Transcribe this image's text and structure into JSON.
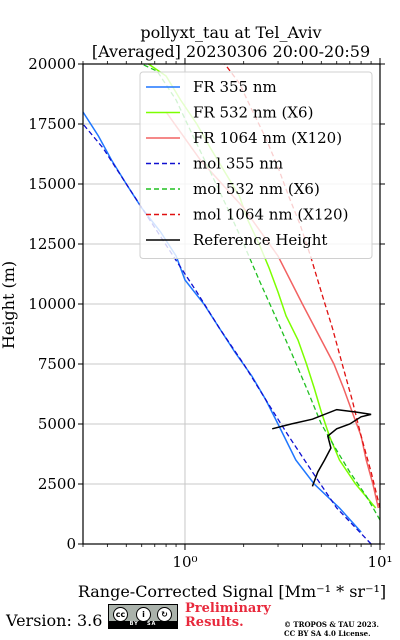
{
  "chart_data": {
    "type": "line",
    "title": "pollyxt_tau at Tel_Aviv",
    "subtitle": "[Averaged] 20230306 20:00-20:59",
    "xlabel": "Range-Corrected Signal [Mm⁻¹ * sr⁻¹]",
    "ylabel": "Height (m)",
    "xscale": "log",
    "xlim": [
      0.3,
      10
    ],
    "ylim": [
      0,
      20000
    ],
    "xticks": [
      1,
      10
    ],
    "xtick_labels": [
      "10⁰",
      "10¹"
    ],
    "yticks": [
      0,
      2500,
      5000,
      7500,
      10000,
      12500,
      15000,
      17500,
      20000
    ],
    "ytick_labels": [
      "0",
      "2500",
      "5000",
      "7500",
      "10000",
      "12500",
      "15000",
      "17500",
      "20000"
    ],
    "grid": true,
    "legend_position": "top-right",
    "series": [
      {
        "name": "FR 355 nm",
        "color": "#1f77ff",
        "style": "solid",
        "x": [
          8.0,
          6.2,
          4.6,
          3.7,
          3.0,
          2.6,
          2.2,
          1.8,
          1.5,
          1.25,
          1.0,
          0.9,
          0.75,
          0.6,
          0.5,
          0.42,
          0.36,
          0.3
        ],
        "y": [
          500,
          1500,
          2500,
          3500,
          5000,
          6000,
          7000,
          8000,
          9000,
          10000,
          11000,
          12000,
          13000,
          14000,
          15000,
          16000,
          17000,
          18000
        ]
      },
      {
        "name": "FR 532 nm (X6)",
        "color": "#7cff00",
        "style": "solid",
        "x": [
          9.5,
          7.5,
          6.2,
          5.5,
          5.0,
          4.6,
          4.2,
          3.8,
          3.3,
          3.0,
          2.7,
          2.4,
          2.1,
          1.9,
          1.6,
          1.35,
          1.15,
          0.95,
          0.8,
          0.65
        ],
        "y": [
          1500,
          2500,
          3500,
          4500,
          5500,
          6500,
          7500,
          8500,
          9500,
          10500,
          11500,
          12500,
          13500,
          14500,
          15500,
          16500,
          17500,
          18500,
          19500,
          20000
        ]
      },
      {
        "name": "FR 1064 nm (X120)",
        "color": "#f26262",
        "style": "solid",
        "x": [
          9.8,
          9.2,
          8.5,
          8.0,
          7.2,
          6.5,
          5.8,
          5.0,
          4.0,
          3.0,
          2.0,
          1.2,
          0.8
        ],
        "y": [
          1500,
          2500,
          3500,
          4500,
          5500,
          6500,
          7500,
          8500,
          10000,
          12000,
          14000,
          16000,
          18000
        ]
      },
      {
        "name": "mol 355 nm",
        "color": "#1010d0",
        "style": "dashed",
        "x": [
          9.0,
          6.0,
          4.5,
          3.4,
          2.6,
          2.0,
          1.5,
          1.15,
          0.87,
          0.66,
          0.5,
          0.38,
          0.3
        ],
        "y": [
          0,
          1500,
          3000,
          4500,
          6000,
          7500,
          9000,
          10500,
          12000,
          13500,
          15000,
          16500,
          17500
        ]
      },
      {
        "name": "mol 532 nm (X6)",
        "color": "#20c020",
        "style": "dashed",
        "x": [
          10.0,
          8.5,
          7.0,
          5.9,
          5.0,
          4.2,
          3.5,
          2.9,
          2.4,
          2.0,
          1.65,
          1.35,
          1.1,
          0.9,
          0.72,
          0.6
        ],
        "y": [
          1000,
          2000,
          3000,
          4000,
          5000,
          6500,
          8000,
          9500,
          11000,
          12500,
          14000,
          15500,
          17000,
          18500,
          19700,
          20000
        ]
      },
      {
        "name": "mol 1064 nm (X120)",
        "color": "#e01010",
        "style": "dashed",
        "x": [
          10.0,
          9.0,
          8.0,
          7.2,
          6.4,
          5.7,
          5.0,
          4.4,
          3.9,
          3.4,
          3.0,
          2.6,
          2.2,
          1.9,
          1.6
        ],
        "y": [
          1500,
          3000,
          4500,
          6000,
          7500,
          9000,
          10500,
          12000,
          13300,
          14500,
          15700,
          16900,
          18100,
          19200,
          20000
        ]
      },
      {
        "name": "Reference Height",
        "color": "#000000",
        "style": "solid",
        "x": [
          4.5,
          4.8,
          5.2,
          5.6,
          5.4,
          6.0,
          7.0,
          8.0,
          9.0,
          7.5,
          6.0,
          4.5,
          3.5,
          2.8
        ],
        "y": [
          2400,
          3000,
          3500,
          4000,
          4500,
          4800,
          5000,
          5300,
          5400,
          5500,
          5600,
          5200,
          5000,
          4800
        ]
      }
    ]
  },
  "footer": {
    "version": "Version: 3.6",
    "license_badge": "cc-by-sa-badge",
    "preliminary_line1": "Preliminary",
    "preliminary_line2": "Results.",
    "copyright_line1": "© TROPOS & TAU 2023.",
    "copyright_line2": "CC BY SA 4.0 License."
  }
}
